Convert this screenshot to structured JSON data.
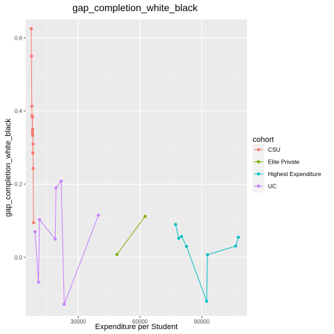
{
  "chart_data": {
    "type": "line",
    "title": "gap_completion_white_black",
    "xlabel": "Expenditure per Student",
    "ylabel": "gap_completion_white_black",
    "xlim": [
      4500,
      112000
    ],
    "ylim": [
      -0.16,
      0.65
    ],
    "xticks": [
      30000,
      60000,
      90000
    ],
    "xtick_labels": [
      "30000",
      "60000",
      "90000"
    ],
    "yticks": [
      0.0,
      0.2,
      0.4,
      0.6
    ],
    "ytick_labels": [
      "0.0",
      "0.2",
      "0.4",
      "0.6"
    ],
    "grid": true,
    "legend": {
      "title": "cohort",
      "position": "right"
    },
    "series": [
      {
        "name": "CSU",
        "color": "#F8766D",
        "points": [
          [
            7200,
            0.625
          ],
          [
            7300,
            0.55
          ],
          [
            7450,
            0.413
          ],
          [
            7550,
            0.387
          ],
          [
            7650,
            0.385
          ],
          [
            7700,
            0.345
          ],
          [
            7750,
            0.383
          ],
          [
            7800,
            0.338
          ],
          [
            7850,
            0.35
          ],
          [
            7900,
            0.333
          ],
          [
            7950,
            0.285
          ],
          [
            8050,
            0.31
          ],
          [
            8100,
            0.243
          ],
          [
            8300,
            0.095
          ]
        ]
      },
      {
        "name": "Elite Private",
        "color": "#7CAE00",
        "points": [
          [
            48800,
            0.008
          ],
          [
            62500,
            0.112
          ]
        ]
      },
      {
        "name": "Highest Expenditure",
        "color": "#00BFC4",
        "points": [
          [
            77300,
            0.09
          ],
          [
            78800,
            0.052
          ],
          [
            80200,
            0.057
          ],
          [
            82600,
            0.03
          ],
          [
            92400,
            -0.12
          ],
          [
            92800,
            0.007
          ],
          [
            106500,
            0.031
          ],
          [
            107800,
            0.055
          ]
        ]
      },
      {
        "name": "UC",
        "color": "#C77CFF",
        "points": [
          [
            9000,
            0.07
          ],
          [
            10700,
            -0.068
          ],
          [
            11200,
            0.103
          ],
          [
            18800,
            0.05
          ],
          [
            19200,
            0.19
          ],
          [
            21700,
            0.208
          ],
          [
            23200,
            -0.128
          ],
          [
            39800,
            0.115
          ]
        ]
      }
    ]
  }
}
